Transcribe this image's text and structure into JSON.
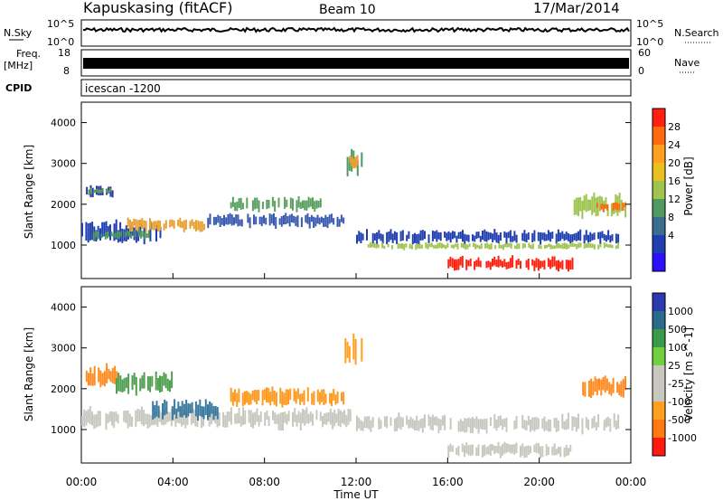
{
  "header": {
    "station": "Kapuskasing (fitACF)",
    "beam": "Beam 10",
    "date": "17/Mar/2014"
  },
  "top_panels": {
    "nsky_label": "N.Sky",
    "nsearch_label": "N.Search",
    "nsky_ticks": [
      "10^5",
      "10^0"
    ],
    "nsearch_ticks": [
      "10^5",
      "10^0"
    ],
    "freq_label": "Freq.",
    "freq_unit": "[MHz]",
    "freq_ticks": [
      "18",
      "8"
    ],
    "nave_label": "Nave",
    "nave_ticks": [
      "60",
      "0"
    ],
    "cpid_label": "CPID",
    "cpid_value": "icescan -1200"
  },
  "chart_data": [
    {
      "type": "heatmap",
      "panel": "power",
      "ylabel": "Slant Range [km]",
      "yticks": [
        "4000",
        "3000",
        "2000",
        "1000"
      ],
      "ylim": [
        180,
        4500
      ],
      "xlim": [
        0,
        24
      ],
      "colorbar_label": "Power [dB]",
      "colorbar_ticks": [
        "28",
        "24",
        "20",
        "16",
        "12",
        "8",
        "4"
      ],
      "colorbar_colors": [
        "#ff2010",
        "#ff6a10",
        "#ffa020",
        "#e8c020",
        "#9fc450",
        "#4f9a60",
        "#3a6e90",
        "#1f3fb0",
        "#2a10ff"
      ],
      "bands": [
        {
          "t0": 0.2,
          "t1": 1.5,
          "r0": 2150,
          "r1": 2450,
          "color": "#2a3aa8"
        },
        {
          "t0": 0.3,
          "t1": 1.4,
          "r0": 2250,
          "r1": 2400,
          "color": "#5a9a5a"
        },
        {
          "t0": 0.0,
          "t1": 3.5,
          "r0": 1050,
          "r1": 1550,
          "color": "#1f3fb0"
        },
        {
          "t0": 2.0,
          "t1": 5.5,
          "r0": 1350,
          "r1": 1650,
          "color": "#e8a030"
        },
        {
          "t0": 0.5,
          "t1": 3.0,
          "r0": 1150,
          "r1": 1350,
          "color": "#4f9a60"
        },
        {
          "t0": 5.5,
          "t1": 11.5,
          "r0": 1450,
          "r1": 1750,
          "color": "#3a5ab0"
        },
        {
          "t0": 6.5,
          "t1": 10.5,
          "r0": 1850,
          "r1": 2150,
          "color": "#5aa060"
        },
        {
          "t0": 11.5,
          "t1": 12.3,
          "r0": 2700,
          "r1": 3300,
          "color": "#4f9a60"
        },
        {
          "t0": 11.7,
          "t1": 12.1,
          "r0": 2900,
          "r1": 3200,
          "color": "#e8a030"
        },
        {
          "t0": 12.0,
          "t1": 23.5,
          "r0": 1050,
          "r1": 1350,
          "color": "#1f3fb0"
        },
        {
          "t0": 12.5,
          "t1": 23.5,
          "r0": 900,
          "r1": 1050,
          "color": "#9fc450"
        },
        {
          "t0": 16.0,
          "t1": 21.5,
          "r0": 400,
          "r1": 700,
          "color": "#ff2010"
        },
        {
          "t0": 21.5,
          "t1": 23.9,
          "r0": 1700,
          "r1": 2200,
          "color": "#9fc450"
        },
        {
          "t0": 22.5,
          "t1": 23.8,
          "r0": 1850,
          "r1": 2050,
          "color": "#ff6a10"
        }
      ]
    },
    {
      "type": "heatmap",
      "panel": "velocity",
      "ylabel": "Slant Range [km]",
      "yticks": [
        "4000",
        "3000",
        "2000",
        "1000"
      ],
      "ylim": [
        180,
        4500
      ],
      "xlim": [
        0,
        24
      ],
      "colorbar_label": "Velocity [m s^-1]",
      "colorbar_ticks": [
        "1000",
        "500",
        "100",
        "25",
        "-25",
        "-100",
        "-500",
        "-1000"
      ],
      "colorbar_colors": [
        "#2a3ab0",
        "#2a6a8a",
        "#3a9a4a",
        "#70d040",
        "#c8c8c0",
        "#c8c8c0",
        "#ffa020",
        "#ff7a10",
        "#ff1a10"
      ],
      "bands": [
        {
          "t0": 0.1,
          "t1": 1.6,
          "r0": 2050,
          "r1": 2550,
          "color": "#ff8a20"
        },
        {
          "t0": 1.5,
          "t1": 4.0,
          "r0": 1900,
          "r1": 2400,
          "color": "#4fa050"
        },
        {
          "t0": 0.0,
          "t1": 11.8,
          "r0": 1050,
          "r1": 1500,
          "color": "#c8c8c0"
        },
        {
          "t0": 3.0,
          "t1": 6.0,
          "r0": 1250,
          "r1": 1700,
          "color": "#3a7aa0"
        },
        {
          "t0": 6.5,
          "t1": 11.5,
          "r0": 1600,
          "r1": 2000,
          "color": "#ff9a20"
        },
        {
          "t0": 11.5,
          "t1": 12.3,
          "r0": 2600,
          "r1": 3300,
          "color": "#ffa020"
        },
        {
          "t0": 12.0,
          "t1": 23.5,
          "r0": 950,
          "r1": 1350,
          "color": "#c8c8c0"
        },
        {
          "t0": 16.0,
          "t1": 21.5,
          "r0": 350,
          "r1": 650,
          "color": "#c8c8c0"
        },
        {
          "t0": 21.7,
          "t1": 23.9,
          "r0": 1800,
          "r1": 2300,
          "color": "#ff8a20"
        }
      ]
    }
  ],
  "xaxis": {
    "label": "Time UT",
    "ticks": [
      "00:00",
      "04:00",
      "08:00",
      "12:00",
      "16:00",
      "20:00",
      "00:00"
    ]
  }
}
